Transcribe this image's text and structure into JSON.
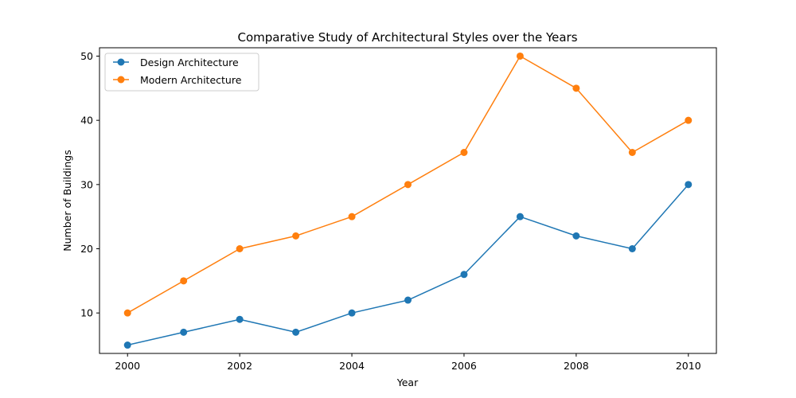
{
  "chart_data": {
    "type": "line",
    "title": "Comparative Study of Architectural Styles over the Years",
    "xlabel": "Year",
    "ylabel": "Number of Buildings",
    "x": [
      2000,
      2001,
      2002,
      2003,
      2004,
      2005,
      2006,
      2007,
      2008,
      2009,
      2010
    ],
    "xlim": [
      1999.5,
      2010.5
    ],
    "ylim": [
      3.7,
      51.3
    ],
    "xticks": [
      2000,
      2002,
      2004,
      2006,
      2008,
      2010
    ],
    "yticks": [
      10,
      20,
      30,
      40,
      50
    ],
    "grid": false,
    "legend_position": "top-left",
    "series": [
      {
        "name": "Design Architecture",
        "color": "#1f77b4",
        "marker": "circle",
        "values": [
          5,
          7,
          9,
          7,
          10,
          12,
          16,
          25,
          22,
          20,
          30
        ]
      },
      {
        "name": "Modern Architecture",
        "color": "#ff7f0e",
        "marker": "circle",
        "values": [
          10,
          15,
          20,
          22,
          25,
          30,
          35,
          50,
          45,
          35,
          40
        ]
      }
    ]
  }
}
